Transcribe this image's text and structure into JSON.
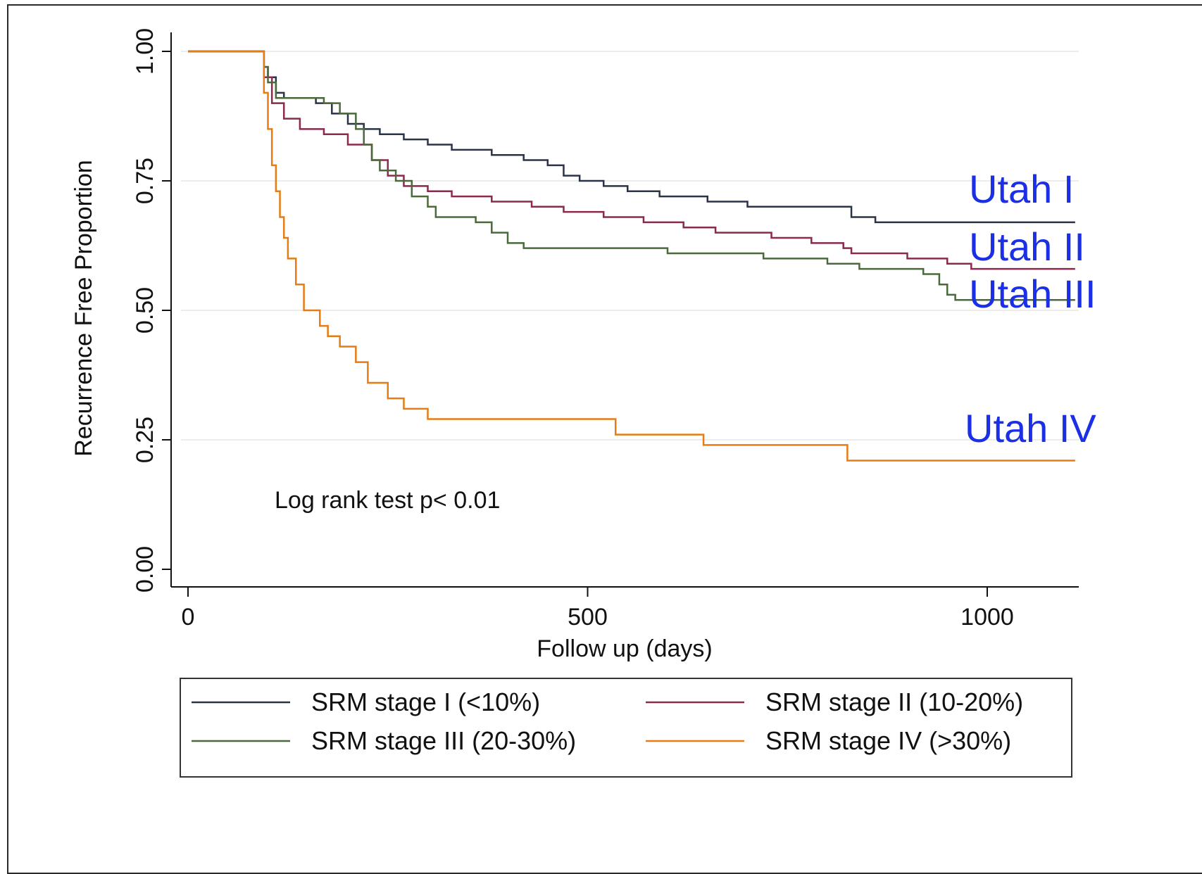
{
  "chart_data": {
    "type": "line",
    "xlabel": "Follow up (days)",
    "ylabel": "Recurrence Free Proportion",
    "xlim": [
      0,
      1110
    ],
    "ylim": [
      0,
      1
    ],
    "x_ticks": [
      "0",
      "500",
      "1000"
    ],
    "y_ticks": [
      "0.00",
      "0.25",
      "0.50",
      "0.75",
      "1.00"
    ],
    "annotation": "Log rank test p< 0.01",
    "legend_position": "bottom",
    "series": [
      {
        "name": "SRM stage I (<10%)",
        "color": "#2b3447",
        "side_label": "Utah I",
        "points": [
          [
            0,
            1.0
          ],
          [
            90,
            1.0
          ],
          [
            95,
            0.97
          ],
          [
            100,
            0.95
          ],
          [
            110,
            0.92
          ],
          [
            120,
            0.91
          ],
          [
            160,
            0.9
          ],
          [
            180,
            0.88
          ],
          [
            200,
            0.86
          ],
          [
            220,
            0.85
          ],
          [
            240,
            0.84
          ],
          [
            270,
            0.83
          ],
          [
            300,
            0.82
          ],
          [
            330,
            0.81
          ],
          [
            380,
            0.8
          ],
          [
            420,
            0.79
          ],
          [
            450,
            0.78
          ],
          [
            470,
            0.76
          ],
          [
            490,
            0.75
          ],
          [
            520,
            0.74
          ],
          [
            550,
            0.73
          ],
          [
            590,
            0.72
          ],
          [
            650,
            0.71
          ],
          [
            700,
            0.7
          ],
          [
            760,
            0.7
          ],
          [
            830,
            0.68
          ],
          [
            860,
            0.67
          ],
          [
            1110,
            0.67
          ]
        ]
      },
      {
        "name": "SRM stage II (10-20%)",
        "color": "#8a2a4f",
        "side_label": "Utah II",
        "points": [
          [
            0,
            1.0
          ],
          [
            90,
            1.0
          ],
          [
            95,
            0.95
          ],
          [
            105,
            0.9
          ],
          [
            120,
            0.87
          ],
          [
            140,
            0.85
          ],
          [
            170,
            0.84
          ],
          [
            200,
            0.82
          ],
          [
            230,
            0.79
          ],
          [
            250,
            0.76
          ],
          [
            270,
            0.74
          ],
          [
            300,
            0.73
          ],
          [
            330,
            0.72
          ],
          [
            380,
            0.71
          ],
          [
            430,
            0.7
          ],
          [
            470,
            0.69
          ],
          [
            520,
            0.68
          ],
          [
            570,
            0.67
          ],
          [
            620,
            0.66
          ],
          [
            660,
            0.65
          ],
          [
            730,
            0.64
          ],
          [
            780,
            0.63
          ],
          [
            820,
            0.62
          ],
          [
            830,
            0.61
          ],
          [
            900,
            0.6
          ],
          [
            950,
            0.59
          ],
          [
            980,
            0.58
          ],
          [
            1110,
            0.58
          ]
        ]
      },
      {
        "name": "SRM stage III (20-30%)",
        "color": "#4a6a3a",
        "side_label": "Utah III",
        "points": [
          [
            0,
            1.0
          ],
          [
            90,
            1.0
          ],
          [
            95,
            0.97
          ],
          [
            100,
            0.94
          ],
          [
            110,
            0.91
          ],
          [
            170,
            0.9
          ],
          [
            190,
            0.88
          ],
          [
            210,
            0.85
          ],
          [
            220,
            0.82
          ],
          [
            230,
            0.79
          ],
          [
            240,
            0.77
          ],
          [
            260,
            0.75
          ],
          [
            280,
            0.72
          ],
          [
            300,
            0.7
          ],
          [
            310,
            0.68
          ],
          [
            360,
            0.67
          ],
          [
            380,
            0.65
          ],
          [
            400,
            0.63
          ],
          [
            420,
            0.62
          ],
          [
            500,
            0.62
          ],
          [
            600,
            0.61
          ],
          [
            720,
            0.6
          ],
          [
            800,
            0.59
          ],
          [
            840,
            0.58
          ],
          [
            920,
            0.57
          ],
          [
            940,
            0.55
          ],
          [
            950,
            0.53
          ],
          [
            960,
            0.52
          ],
          [
            1110,
            0.52
          ]
        ]
      },
      {
        "name": "SRM stage IV (>30%)",
        "color": "#e57c14",
        "side_label": "Utah IV",
        "points": [
          [
            0,
            1.0
          ],
          [
            90,
            1.0
          ],
          [
            95,
            0.92
          ],
          [
            100,
            0.85
          ],
          [
            105,
            0.78
          ],
          [
            110,
            0.73
          ],
          [
            115,
            0.68
          ],
          [
            120,
            0.64
          ],
          [
            125,
            0.6
          ],
          [
            135,
            0.55
          ],
          [
            145,
            0.5
          ],
          [
            165,
            0.47
          ],
          [
            175,
            0.45
          ],
          [
            190,
            0.43
          ],
          [
            210,
            0.4
          ],
          [
            225,
            0.36
          ],
          [
            250,
            0.33
          ],
          [
            270,
            0.31
          ],
          [
            300,
            0.29
          ],
          [
            400,
            0.29
          ],
          [
            535,
            0.26
          ],
          [
            645,
            0.24
          ],
          [
            825,
            0.21
          ],
          [
            1110,
            0.21
          ]
        ]
      }
    ]
  }
}
